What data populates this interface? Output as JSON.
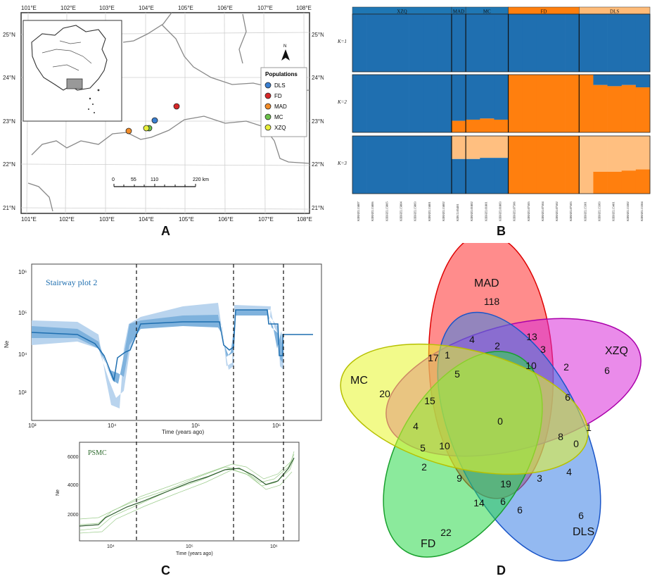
{
  "panel_labels": {
    "a": "A",
    "b": "B",
    "c": "C",
    "d": "D"
  },
  "map": {
    "lon_top": [
      "101°E",
      "102°E",
      "103°E",
      "104°E",
      "105°E",
      "106°E",
      "107°E",
      "108°E"
    ],
    "lon_bottom": [
      "101°E",
      "102°E",
      "103°E",
      "104°E",
      "105°E",
      "106°E",
      "107°E",
      "108°E"
    ],
    "lat_left": [
      "25°N",
      "24°N",
      "23°N",
      "22°N",
      "21°N"
    ],
    "lat_right": [
      "25°N",
      "24°N",
      "23°N",
      "22°N",
      "21°N"
    ],
    "north": "N",
    "legend_title": "Populations",
    "populations": [
      {
        "name": "DLS",
        "color": "#3a7fd1"
      },
      {
        "name": "FD",
        "color": "#d62728"
      },
      {
        "name": "MAD",
        "color": "#f28c28"
      },
      {
        "name": "MC",
        "color": "#6cc24a"
      },
      {
        "name": "XZQ",
        "color": "#e8ef3a"
      }
    ],
    "scale_ticks": [
      "0",
      "55",
      "110",
      "220 km"
    ]
  },
  "structure": {
    "groups": [
      {
        "name": "XZQ",
        "n": 7,
        "color": "#1f77b4"
      },
      {
        "name": "MAD",
        "n": 1,
        "color": "#1f77b4"
      },
      {
        "name": "MC",
        "n": 3,
        "color": "#1f77b4"
      },
      {
        "name": "FD",
        "n": 5,
        "color": "#ff7f0e"
      },
      {
        "name": "DLS",
        "n": 5,
        "color": "#ffbb78"
      }
    ],
    "k_labels": [
      "K=1",
      "K=2",
      "K=3"
    ],
    "colors": {
      "c1": "#1f6fb0",
      "c2": "#ff7f0e",
      "c3": "#ffbf80"
    },
    "samples": [
      "KIBHZL15807",
      "KIBHZL15806",
      "KIBHZL15805",
      "KIBHZL15804",
      "KIBHZL15803",
      "KIBHZL15801",
      "KIBHZL15802",
      "KIBCL03401",
      "KIBHZL01802",
      "KIBHZL01801",
      "KIBHZL01803",
      "KIBHZL07506",
      "KIBHZL07505",
      "KIBHZL07504",
      "KIBHZL07502",
      "KIBHZL07503",
      "KIBHZL15301",
      "KIBHZL15303",
      "KIBHZL15401",
      "KIBHZL15302",
      "KIBHZL15304"
    ],
    "k2_orange": [
      0,
      0,
      0,
      0,
      0,
      0,
      0,
      0.2,
      0.22,
      0.24,
      0.22,
      1,
      1,
      1,
      1,
      1,
      1,
      0.82,
      0.8,
      0.82,
      0.78
    ],
    "k3_blue": [
      1,
      1,
      1,
      1,
      1,
      1,
      1,
      0.6,
      0.6,
      0.62,
      0.62,
      0,
      0,
      0,
      0,
      0,
      0,
      0,
      0,
      0,
      0
    ],
    "k3_orange": [
      0,
      0,
      0,
      0,
      0,
      0,
      0,
      0,
      0,
      0,
      0,
      1,
      1,
      1,
      1,
      1,
      0,
      0,
      0,
      0,
      0
    ],
    "k3_blue_dls": [
      0,
      0,
      0,
      0,
      0,
      0,
      0,
      0,
      0,
      0,
      0,
      0,
      0,
      0,
      0,
      0,
      0,
      0.38,
      0.38,
      0.4,
      0.42
    ]
  },
  "stairway": {
    "title": "Stairway plot 2",
    "ylabel": "Ne",
    "xlabel": "Time (years ago)",
    "yticks": [
      "10⁶",
      "10⁵",
      "10⁴",
      "10³"
    ],
    "xticks": [
      "10³",
      "10⁴",
      "10⁵",
      "10⁶"
    ]
  },
  "psmc": {
    "title": "PSMC",
    "ylabel": "Ne",
    "xlabel": "Time (years ago)",
    "yticks": [
      "6000",
      "4000",
      "2000"
    ],
    "xticks": [
      "10⁴",
      "10⁵",
      "10⁶"
    ]
  },
  "venn": {
    "set_names": {
      "mad": "MAD",
      "xzq": "XZQ",
      "mc": "MC",
      "fd": "FD",
      "dls": "DLS"
    },
    "counts": [
      "118",
      "6",
      "20",
      "22",
      "6",
      "4",
      "2",
      "13",
      "3",
      "17",
      "1",
      "10",
      "2",
      "5",
      "6",
      "15",
      "0",
      "8",
      "1",
      "4",
      "0",
      "5",
      "10",
      "4",
      "2",
      "9",
      "19",
      "3",
      "14",
      "6",
      "6"
    ]
  }
}
